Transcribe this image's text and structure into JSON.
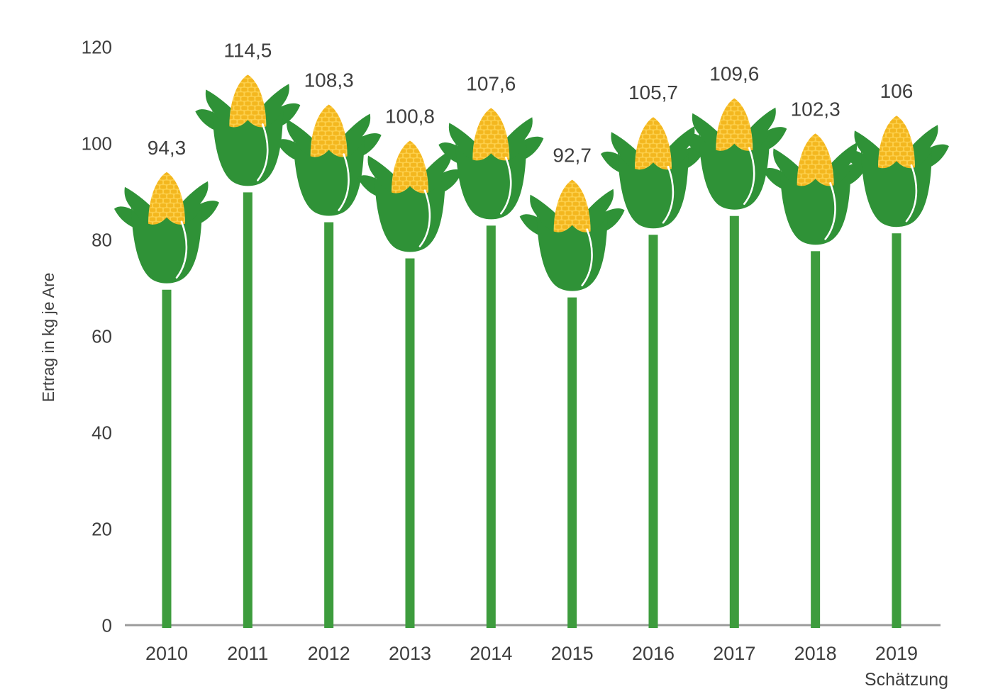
{
  "chart_data": {
    "type": "bar",
    "pictogram": "corn-cob",
    "categories": [
      "2010",
      "2011",
      "2012",
      "2013",
      "2014",
      "2015",
      "2016",
      "2017",
      "2018",
      "2019"
    ],
    "values": [
      94.3,
      114.5,
      108.3,
      100.8,
      107.6,
      92.7,
      105.7,
      109.6,
      102.3,
      106
    ],
    "value_labels": [
      "94,3",
      "114,5",
      "108,3",
      "100,8",
      "107,6",
      "92,7",
      "105,7",
      "109,6",
      "102,3",
      "106"
    ],
    "ylabel": "Ertrag in kg je Are",
    "xlabel": "",
    "yticks": [
      0,
      20,
      40,
      60,
      80,
      100,
      120
    ],
    "ylim": [
      0,
      120
    ],
    "x_axis_note": "Schätzung",
    "x_axis_note_category": "2019",
    "grid": false,
    "legend_position": "none",
    "colors": {
      "stem": "#3d9c3d",
      "leaf": "#2f9237",
      "cob": "#fdd04c",
      "kernel": "#f3b71f",
      "vein": "#ffffff",
      "axis_line": "#9b9b9b",
      "text": "#3e3e3e",
      "background": "#ffffff"
    }
  }
}
